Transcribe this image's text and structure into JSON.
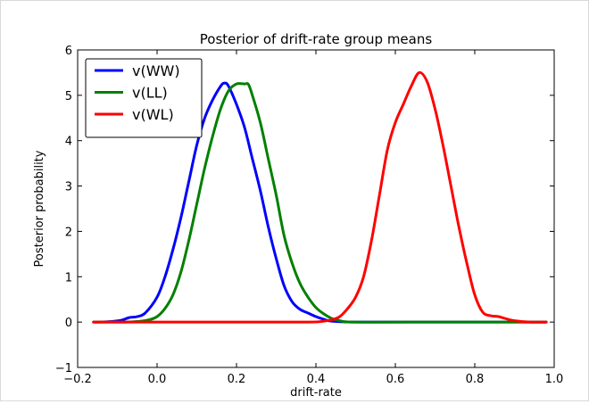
{
  "chart_data": {
    "type": "line",
    "title": "Posterior of drift-rate group means",
    "xlabel": "drift-rate",
    "ylabel": "Posterior probability",
    "xlim": [
      -0.2,
      1.0
    ],
    "ylim": [
      -1,
      6
    ],
    "xticks": [
      -0.2,
      0.0,
      0.2,
      0.4,
      0.6,
      0.8,
      1.0
    ],
    "xtick_labels": [
      "−0.2",
      "0.0",
      "0.2",
      "0.4",
      "0.6",
      "0.8",
      "1.0"
    ],
    "yticks": [
      -1,
      0,
      1,
      2,
      3,
      4,
      5,
      6
    ],
    "ytick_labels": [
      "−1",
      "0",
      "1",
      "2",
      "3",
      "4",
      "5",
      "6"
    ],
    "grid": false,
    "legend_position": "top-left",
    "series": [
      {
        "name": "v(WW)",
        "color": "#0000ff",
        "points": [
          [
            -0.16,
            0.0
          ],
          [
            -0.12,
            0.01
          ],
          [
            -0.09,
            0.04
          ],
          [
            -0.07,
            0.1
          ],
          [
            -0.05,
            0.12
          ],
          [
            -0.03,
            0.2
          ],
          [
            0.0,
            0.55
          ],
          [
            0.02,
            1.0
          ],
          [
            0.04,
            1.6
          ],
          [
            0.06,
            2.3
          ],
          [
            0.08,
            3.1
          ],
          [
            0.1,
            3.9
          ],
          [
            0.12,
            4.5
          ],
          [
            0.14,
            4.9
          ],
          [
            0.16,
            5.2
          ],
          [
            0.17,
            5.27
          ],
          [
            0.18,
            5.2
          ],
          [
            0.2,
            4.8
          ],
          [
            0.22,
            4.3
          ],
          [
            0.24,
            3.6
          ],
          [
            0.26,
            2.9
          ],
          [
            0.28,
            2.1
          ],
          [
            0.3,
            1.4
          ],
          [
            0.32,
            0.8
          ],
          [
            0.34,
            0.45
          ],
          [
            0.36,
            0.28
          ],
          [
            0.38,
            0.2
          ],
          [
            0.4,
            0.12
          ],
          [
            0.42,
            0.06
          ],
          [
            0.44,
            0.02
          ],
          [
            0.5,
            0.0
          ],
          [
            0.7,
            0.0
          ],
          [
            0.9,
            0.0
          ],
          [
            0.98,
            0.0
          ]
        ]
      },
      {
        "name": "v(LL)",
        "color": "#008000",
        "points": [
          [
            -0.16,
            0.0
          ],
          [
            -0.08,
            0.0
          ],
          [
            -0.04,
            0.02
          ],
          [
            -0.02,
            0.05
          ],
          [
            0.0,
            0.12
          ],
          [
            0.02,
            0.3
          ],
          [
            0.04,
            0.6
          ],
          [
            0.06,
            1.1
          ],
          [
            0.08,
            1.8
          ],
          [
            0.1,
            2.6
          ],
          [
            0.12,
            3.4
          ],
          [
            0.14,
            4.1
          ],
          [
            0.16,
            4.7
          ],
          [
            0.18,
            5.1
          ],
          [
            0.2,
            5.25
          ],
          [
            0.22,
            5.25
          ],
          [
            0.23,
            5.24
          ],
          [
            0.24,
            5.0
          ],
          [
            0.26,
            4.4
          ],
          [
            0.28,
            3.6
          ],
          [
            0.3,
            2.8
          ],
          [
            0.32,
            1.9
          ],
          [
            0.34,
            1.3
          ],
          [
            0.36,
            0.85
          ],
          [
            0.38,
            0.55
          ],
          [
            0.4,
            0.32
          ],
          [
            0.42,
            0.18
          ],
          [
            0.44,
            0.08
          ],
          [
            0.46,
            0.03
          ],
          [
            0.5,
            0.0
          ],
          [
            0.7,
            0.0
          ],
          [
            0.9,
            0.0
          ],
          [
            0.98,
            0.0
          ]
        ]
      },
      {
        "name": "v(WL)",
        "color": "#ff0000",
        "points": [
          [
            -0.16,
            0.0
          ],
          [
            0.0,
            0.0
          ],
          [
            0.2,
            0.0
          ],
          [
            0.38,
            0.0
          ],
          [
            0.42,
            0.02
          ],
          [
            0.44,
            0.05
          ],
          [
            0.46,
            0.12
          ],
          [
            0.48,
            0.3
          ],
          [
            0.5,
            0.55
          ],
          [
            0.52,
            1.0
          ],
          [
            0.54,
            1.8
          ],
          [
            0.56,
            2.8
          ],
          [
            0.58,
            3.8
          ],
          [
            0.6,
            4.4
          ],
          [
            0.62,
            4.8
          ],
          [
            0.64,
            5.2
          ],
          [
            0.66,
            5.5
          ],
          [
            0.68,
            5.3
          ],
          [
            0.7,
            4.7
          ],
          [
            0.72,
            3.9
          ],
          [
            0.74,
            3.0
          ],
          [
            0.76,
            2.1
          ],
          [
            0.78,
            1.3
          ],
          [
            0.8,
            0.6
          ],
          [
            0.82,
            0.22
          ],
          [
            0.84,
            0.14
          ],
          [
            0.86,
            0.12
          ],
          [
            0.88,
            0.07
          ],
          [
            0.9,
            0.03
          ],
          [
            0.94,
            0.0
          ],
          [
            0.98,
            0.0
          ]
        ]
      }
    ]
  }
}
